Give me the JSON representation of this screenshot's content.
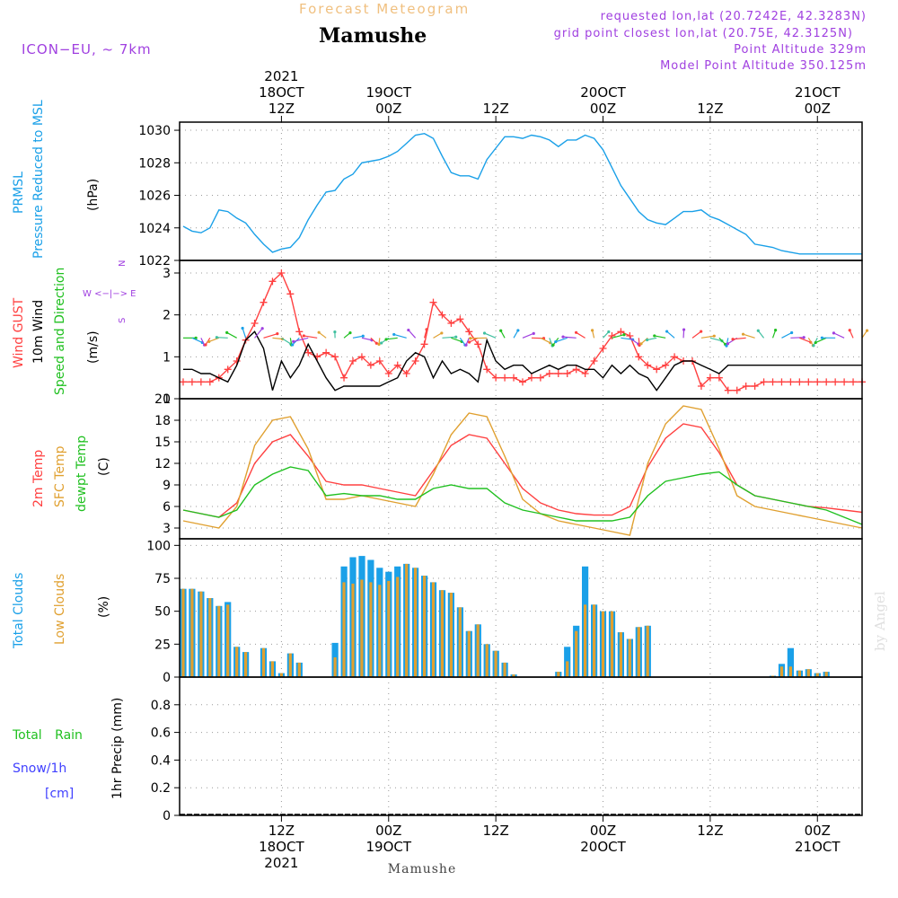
{
  "header": {
    "top_title": "Forecast Meteogram",
    "location": "Mamushe",
    "model": "ICON−EU, ~ 7km",
    "requested": "requested lon,lat (20.7242E, 42.3283N)",
    "grid_point": "grid point closest lon,lat (20.75E, 42.3125N)",
    "point_altitude": "Point Altitude 329m",
    "model_altitude": "Model Point Altitude 350.125m",
    "footer_location": "Mamushe",
    "watermark": "by Angel"
  },
  "colors": {
    "pressure": "#1aa0e8",
    "gust": "#ff4040",
    "wind": "#000000",
    "temp2m": "#ff4040",
    "sfc": "#e0a030",
    "dew": "#20c020",
    "total_clouds": "#1aa0e8",
    "low_clouds": "#e0a030",
    "rain": "#20c020",
    "snow": "#4040ff",
    "compass": "#a040e0"
  },
  "time_axis": {
    "top_labels": [
      {
        "hour": 12,
        "lines": [
          "2021",
          "18OCT",
          "12Z"
        ]
      },
      {
        "hour": 24,
        "lines": [
          "19OCT",
          "00Z"
        ]
      },
      {
        "hour": 36,
        "lines": [
          "12Z"
        ]
      },
      {
        "hour": 48,
        "lines": [
          "20OCT",
          "00Z"
        ]
      },
      {
        "hour": 60,
        "lines": [
          "12Z"
        ]
      },
      {
        "hour": 72,
        "lines": [
          "21OCT",
          "00Z"
        ]
      }
    ],
    "bottom_labels": [
      {
        "hour": 12,
        "lines": [
          "12Z",
          "18OCT",
          "2021"
        ]
      },
      {
        "hour": 24,
        "lines": [
          "00Z",
          "19OCT"
        ]
      },
      {
        "hour": 36,
        "lines": [
          "12Z"
        ]
      },
      {
        "hour": 48,
        "lines": [
          "00Z",
          "20OCT"
        ]
      },
      {
        "hour": 60,
        "lines": [
          "12Z"
        ]
      },
      {
        "hour": 72,
        "lines": [
          "00Z",
          "21OCT"
        ]
      }
    ],
    "range_hours": [
      1,
      77
    ]
  },
  "chart_data": [
    {
      "type": "line",
      "title": "PRMSL Pressure Reduced to MSL",
      "ylabel": "(hPa)",
      "ylabel_lines": [
        "PRMSL",
        "Pressure Reduced to MSL"
      ],
      "ylim": [
        1022,
        1030.5
      ],
      "yticks": [
        1022,
        1024,
        1026,
        1028,
        1030
      ],
      "series": [
        {
          "name": "Pressure",
          "x": [
            1,
            2,
            3,
            4,
            5,
            6,
            7,
            8,
            9,
            10,
            11,
            12,
            13,
            14,
            15,
            16,
            17,
            18,
            19,
            20,
            21,
            22,
            23,
            24,
            25,
            26,
            27,
            28,
            29,
            30,
            31,
            32,
            33,
            34,
            35,
            36,
            37,
            38,
            39,
            40,
            41,
            42,
            43,
            44,
            45,
            46,
            47,
            48,
            49,
            50,
            51,
            52,
            53,
            54,
            55,
            56,
            57,
            58,
            59,
            60,
            61,
            62,
            63,
            64,
            65,
            66,
            67,
            68,
            69,
            70,
            71,
            72,
            73,
            74,
            75,
            76,
            77
          ],
          "values": [
            1024.1,
            1023.8,
            1023.7,
            1024.0,
            1025.1,
            1025.0,
            1024.6,
            1024.3,
            1023.6,
            1023.0,
            1022.5,
            1022.7,
            1022.8,
            1023.4,
            1024.5,
            1025.4,
            1026.2,
            1026.3,
            1027.0,
            1027.3,
            1028.0,
            1028.1,
            1028.2,
            1028.4,
            1028.7,
            1029.2,
            1029.7,
            1029.8,
            1029.5,
            1028.4,
            1027.4,
            1027.2,
            1027.2,
            1027.0,
            1028.2,
            1028.9,
            1029.6,
            1029.6,
            1029.5,
            1029.7,
            1029.6,
            1029.4,
            1029.0,
            1029.4,
            1029.4,
            1029.7,
            1029.5,
            1028.8,
            1027.7,
            1026.6,
            1025.8,
            1025.0,
            1024.5,
            1024.3,
            1024.2,
            1024.6,
            1025.0,
            1025.0,
            1025.1,
            1024.7,
            1024.5,
            1024.2,
            1023.9,
            1023.6,
            1023.0,
            1022.9,
            1022.8,
            1022.6,
            1022.5,
            1022.4,
            1022.4,
            1022.4,
            1022.4,
            1022.4,
            1022.4,
            1022.4,
            1022.4
          ]
        }
      ]
    },
    {
      "type": "line",
      "title": "Wind GUST / 10m Wind Speed and Direction",
      "ylabel": "(m/s)",
      "ylabel_lines": [
        "Wind GUST",
        "10m Wind",
        "Speed and Direction"
      ],
      "compass": [
        "N",
        "W <−|−> E",
        "S"
      ],
      "ylim": [
        0,
        3.3
      ],
      "yticks": [
        0,
        1,
        2,
        3
      ],
      "series": [
        {
          "name": "Wind GUST",
          "x": [
            1,
            2,
            3,
            4,
            5,
            6,
            7,
            8,
            9,
            10,
            11,
            12,
            13,
            14,
            15,
            16,
            17,
            18,
            19,
            20,
            21,
            22,
            23,
            24,
            25,
            26,
            27,
            28,
            29,
            30,
            31,
            32,
            33,
            34,
            35,
            36,
            37,
            38,
            39,
            40,
            41,
            42,
            43,
            44,
            45,
            46,
            47,
            48,
            49,
            50,
            51,
            52,
            53,
            54,
            55,
            56,
            57,
            58,
            59,
            60,
            61,
            62,
            63,
            64,
            65,
            66,
            67,
            68,
            69,
            70,
            71,
            72,
            73,
            74,
            75,
            76,
            77
          ],
          "values": [
            0.4,
            0.4,
            0.4,
            0.4,
            0.5,
            0.7,
            0.9,
            1.4,
            1.8,
            2.3,
            2.8,
            3.0,
            2.5,
            1.6,
            1.1,
            1.0,
            1.1,
            1.0,
            0.5,
            0.9,
            1.0,
            0.8,
            0.9,
            0.6,
            0.8,
            0.6,
            0.9,
            1.3,
            2.3,
            2.0,
            1.8,
            1.9,
            1.6,
            1.3,
            0.7,
            0.5,
            0.5,
            0.5,
            0.4,
            0.5,
            0.5,
            0.6,
            0.6,
            0.6,
            0.7,
            0.6,
            0.9,
            1.2,
            1.5,
            1.6,
            1.5,
            1.0,
            0.8,
            0.7,
            0.8,
            1.0,
            0.9,
            0.9,
            0.3,
            0.5,
            0.5,
            0.2,
            0.2,
            0.3,
            0.3,
            0.4,
            0.4,
            0.4,
            0.4,
            0.4,
            0.4,
            0.4,
            0.4,
            0.4,
            0.4,
            0.4,
            0.4
          ]
        },
        {
          "name": "10m Wind",
          "x": [
            1,
            2,
            3,
            4,
            5,
            6,
            7,
            8,
            9,
            10,
            11,
            12,
            13,
            14,
            15,
            16,
            17,
            18,
            19,
            20,
            21,
            22,
            23,
            24,
            25,
            26,
            27,
            28,
            29,
            30,
            31,
            32,
            33,
            34,
            35,
            36,
            37,
            38,
            39,
            40,
            41,
            42,
            43,
            44,
            45,
            46,
            47,
            48,
            49,
            50,
            51,
            52,
            53,
            54,
            55,
            56,
            57,
            58,
            59,
            60,
            61,
            62,
            63,
            64,
            65,
            66,
            67,
            68,
            69,
            70,
            71,
            72,
            73,
            74,
            75,
            76,
            77
          ],
          "values": [
            0.7,
            0.7,
            0.6,
            0.6,
            0.5,
            0.4,
            0.8,
            1.4,
            1.6,
            1.2,
            0.2,
            0.9,
            0.5,
            0.8,
            1.3,
            0.9,
            0.5,
            0.2,
            0.3,
            0.3,
            0.3,
            0.3,
            0.3,
            0.4,
            0.5,
            0.9,
            1.1,
            1.0,
            0.5,
            0.9,
            0.6,
            0.7,
            0.6,
            0.4,
            1.4,
            0.9,
            0.7,
            0.8,
            0.8,
            0.6,
            0.7,
            0.8,
            0.7,
            0.8,
            0.8,
            0.7,
            0.7,
            0.5,
            0.8,
            0.6,
            0.8,
            0.6,
            0.5,
            0.2,
            0.5,
            0.8,
            0.9,
            0.9,
            0.8,
            0.7,
            0.6,
            0.8,
            0.8,
            0.8,
            0.8,
            0.8,
            0.8,
            0.8,
            0.8,
            0.8,
            0.8,
            0.8,
            0.8,
            0.8,
            0.8,
            0.8,
            0.8
          ]
        }
      ]
    },
    {
      "type": "line",
      "title": "2m Temp / SFC Temp / dewpt Temp",
      "ylabel": "(C)",
      "ylabel_lines": [
        "2m Temp",
        "SFC Temp",
        "dewpt Temp"
      ],
      "ylim": [
        1.5,
        21
      ],
      "yticks": [
        3,
        6,
        9,
        12,
        15,
        18,
        21
      ],
      "series": [
        {
          "name": "2m Temp",
          "x": [
            1,
            3,
            5,
            7,
            9,
            11,
            13,
            15,
            17,
            19,
            21,
            23,
            25,
            27,
            29,
            31,
            33,
            35,
            37,
            39,
            41,
            43,
            45,
            47,
            49,
            51,
            53,
            55,
            57,
            59,
            61,
            63,
            65,
            67,
            69,
            71,
            73,
            75,
            77
          ],
          "values": [
            5.5,
            5.0,
            4.5,
            6.5,
            12.0,
            15.0,
            16.0,
            13.0,
            9.5,
            9.0,
            9.0,
            8.5,
            8.0,
            7.5,
            11.0,
            14.5,
            16.0,
            15.5,
            12.0,
            8.5,
            6.5,
            5.5,
            5.0,
            4.8,
            4.8,
            6.0,
            11.5,
            15.5,
            17.5,
            17.0,
            13.5,
            9.0,
            7.5,
            7.0,
            6.5,
            6.0,
            5.8,
            5.5,
            5.2
          ]
        },
        {
          "name": "SFC Temp",
          "x": [
            1,
            3,
            5,
            7,
            9,
            11,
            13,
            15,
            17,
            19,
            21,
            23,
            25,
            27,
            29,
            31,
            33,
            35,
            37,
            39,
            41,
            43,
            45,
            47,
            49,
            51,
            53,
            55,
            57,
            59,
            61,
            63,
            65,
            67,
            69,
            71,
            73,
            75,
            77
          ],
          "values": [
            4.0,
            3.5,
            3.0,
            6.0,
            14.5,
            18.0,
            18.5,
            14.0,
            7.0,
            7.0,
            7.5,
            7.0,
            6.5,
            6.0,
            10.5,
            16.0,
            19.0,
            18.5,
            13.0,
            7.0,
            5.0,
            4.0,
            3.5,
            3.0,
            2.5,
            2.0,
            12.0,
            17.5,
            20.0,
            19.5,
            14.0,
            7.5,
            6.0,
            5.5,
            5.0,
            4.5,
            4.0,
            3.5,
            3.0
          ]
        },
        {
          "name": "dewpt Temp",
          "x": [
            1,
            3,
            5,
            7,
            9,
            11,
            13,
            15,
            17,
            19,
            21,
            23,
            25,
            27,
            29,
            31,
            33,
            35,
            37,
            39,
            41,
            43,
            45,
            47,
            49,
            51,
            53,
            55,
            57,
            59,
            61,
            63,
            65,
            67,
            69,
            71,
            73,
            75,
            77
          ],
          "values": [
            5.5,
            5.0,
            4.5,
            5.5,
            9.0,
            10.5,
            11.5,
            11.0,
            7.5,
            7.8,
            7.5,
            7.5,
            7.0,
            7.0,
            8.5,
            9.0,
            8.5,
            8.5,
            6.5,
            5.5,
            5.0,
            4.5,
            4.0,
            4.0,
            4.0,
            4.5,
            7.5,
            9.5,
            10.0,
            10.5,
            10.8,
            9.0,
            7.5,
            7.0,
            6.5,
            6.0,
            5.5,
            4.5,
            3.5
          ]
        }
      ]
    },
    {
      "type": "bar",
      "title": "Total Clouds / Low Clouds",
      "ylabel": "(%)",
      "ylabel_lines": [
        "Total Clouds",
        "Low Clouds"
      ],
      "ylim": [
        0,
        105
      ],
      "yticks": [
        0,
        25,
        50,
        75,
        100
      ],
      "x": [
        1,
        2,
        3,
        4,
        5,
        6,
        7,
        8,
        9,
        10,
        11,
        12,
        13,
        14,
        15,
        16,
        17,
        18,
        19,
        20,
        21,
        22,
        23,
        24,
        25,
        26,
        27,
        28,
        29,
        30,
        31,
        32,
        33,
        34,
        35,
        36,
        37,
        38,
        39,
        40,
        41,
        42,
        43,
        44,
        45,
        46,
        47,
        48,
        49,
        50,
        51,
        52,
        53,
        54,
        55,
        56,
        57,
        58,
        59,
        60,
        61,
        62,
        63,
        64,
        65,
        66,
        67,
        68,
        69,
        70,
        71,
        72,
        73,
        74,
        75,
        76,
        77
      ],
      "series": [
        {
          "name": "Total Clouds",
          "values": [
            67,
            67,
            65,
            60,
            54,
            57,
            23,
            19,
            0,
            22,
            12,
            3,
            18,
            11,
            0,
            0,
            0,
            26,
            84,
            91,
            92,
            89,
            83,
            80,
            84,
            86,
            83,
            77,
            72,
            66,
            64,
            53,
            35,
            40,
            25,
            20,
            11,
            2,
            0,
            0,
            0,
            0,
            4,
            23,
            39,
            84,
            55,
            50,
            50,
            34,
            29,
            38,
            39,
            0,
            0,
            0,
            0,
            0,
            0,
            0,
            0,
            0,
            0,
            0,
            0,
            0,
            1,
            10,
            22,
            5,
            6,
            3,
            4,
            0,
            0,
            0,
            0
          ]
        },
        {
          "name": "Low Clouds",
          "values": [
            67,
            67,
            65,
            60,
            54,
            55,
            23,
            19,
            0,
            22,
            12,
            3,
            18,
            11,
            0,
            0,
            0,
            15,
            72,
            71,
            74,
            72,
            70,
            73,
            76,
            86,
            83,
            77,
            72,
            66,
            64,
            53,
            35,
            40,
            25,
            20,
            11,
            2,
            0,
            0,
            0,
            0,
            4,
            12,
            35,
            55,
            55,
            50,
            50,
            34,
            29,
            38,
            39,
            0,
            0,
            0,
            0,
            0,
            0,
            0,
            0,
            0,
            0,
            0,
            0,
            0,
            1,
            8,
            8,
            5,
            6,
            3,
            4,
            0,
            0,
            0,
            0
          ]
        }
      ]
    },
    {
      "type": "bar",
      "title": "1hr Precip (mm)",
      "ylabel": "1hr Precip (mm)",
      "legend_lines": [
        "Total Rain",
        "Snow/1h",
        "[cm]"
      ],
      "ylim": [
        0,
        1.0
      ],
      "yticks": [
        0,
        0.2,
        0.4,
        0.6,
        0.8
      ],
      "series": [
        {
          "name": "Total Rain",
          "values": []
        },
        {
          "name": "Snow/1h",
          "values": []
        }
      ]
    }
  ]
}
